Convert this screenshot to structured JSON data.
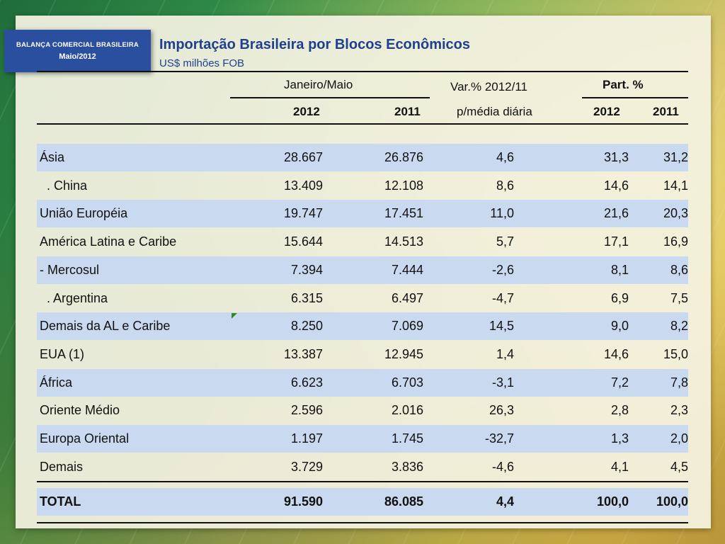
{
  "badge": {
    "line1": "BALANÇA COMERCIAL BRASILEIRA",
    "line2": "Maio/2012"
  },
  "title": "Importação Brasileira por Blocos Econômicos",
  "subtitle": "US$ milhões FOB",
  "header": {
    "period": "Janeiro/Maio",
    "var_line1": "Var.% 2012/11",
    "var_line2": "p/média diária",
    "part": "Part. %",
    "y2012": "2012",
    "y2011": "2011",
    "p2012": "2012",
    "p2011": "2011"
  },
  "rows": [
    {
      "name": "Ásia",
      "v2012": "28.667",
      "v2011": "26.876",
      "var": "4,6",
      "p2012": "31,3",
      "p2011": "31,2"
    },
    {
      "name": "  . China",
      "v2012": "13.409",
      "v2011": "12.108",
      "var": "8,6",
      "p2012": "14,6",
      "p2011": "14,1"
    },
    {
      "name": "União Européia",
      "v2012": "19.747",
      "v2011": "17.451",
      "var": "11,0",
      "p2012": "21,6",
      "p2011": "20,3"
    },
    {
      "name": "América Latina e Caribe",
      "v2012": "15.644",
      "v2011": "14.513",
      "var": "5,7",
      "p2012": "17,1",
      "p2011": "16,9"
    },
    {
      "name": "- Mercosul",
      "v2012": "7.394",
      "v2011": "7.444",
      "var": "-2,6",
      "p2012": "8,1",
      "p2011": "8,6"
    },
    {
      "name": "  . Argentina",
      "v2012": "6.315",
      "v2011": "6.497",
      "var": "-4,7",
      "p2012": "6,9",
      "p2011": "7,5"
    },
    {
      "name": "Demais da AL e Caribe",
      "v2012": "8.250",
      "v2011": "7.069",
      "var": "14,5",
      "p2012": "9,0",
      "p2011": "8,2"
    },
    {
      "name": "EUA (1)",
      "v2012": "13.387",
      "v2011": "12.945",
      "var": "1,4",
      "p2012": "14,6",
      "p2011": "15,0"
    },
    {
      "name": "África",
      "v2012": "6.623",
      "v2011": "6.703",
      "var": "-3,1",
      "p2012": "7,2",
      "p2011": "7,8"
    },
    {
      "name": "Oriente Médio",
      "v2012": "2.596",
      "v2011": "2.016",
      "var": "26,3",
      "p2012": "2,8",
      "p2011": "2,3"
    },
    {
      "name": "Europa Oriental",
      "v2012": "1.197",
      "v2011": "1.745",
      "var": "-32,7",
      "p2012": "1,3",
      "p2011": "2,0"
    },
    {
      "name": "Demais",
      "v2012": "3.729",
      "v2011": "3.836",
      "var": "-4,6",
      "p2012": "4,1",
      "p2011": "4,5"
    }
  ],
  "total": {
    "name": "TOTAL",
    "v2012": "91.590",
    "v2011": "86.085",
    "var": "4,4",
    "p2012": "100,0",
    "p2011": "100,0"
  },
  "colors": {
    "badge": "#2a4f9e",
    "title": "#1f3f8f",
    "row_shade": "#c9d9ef"
  }
}
